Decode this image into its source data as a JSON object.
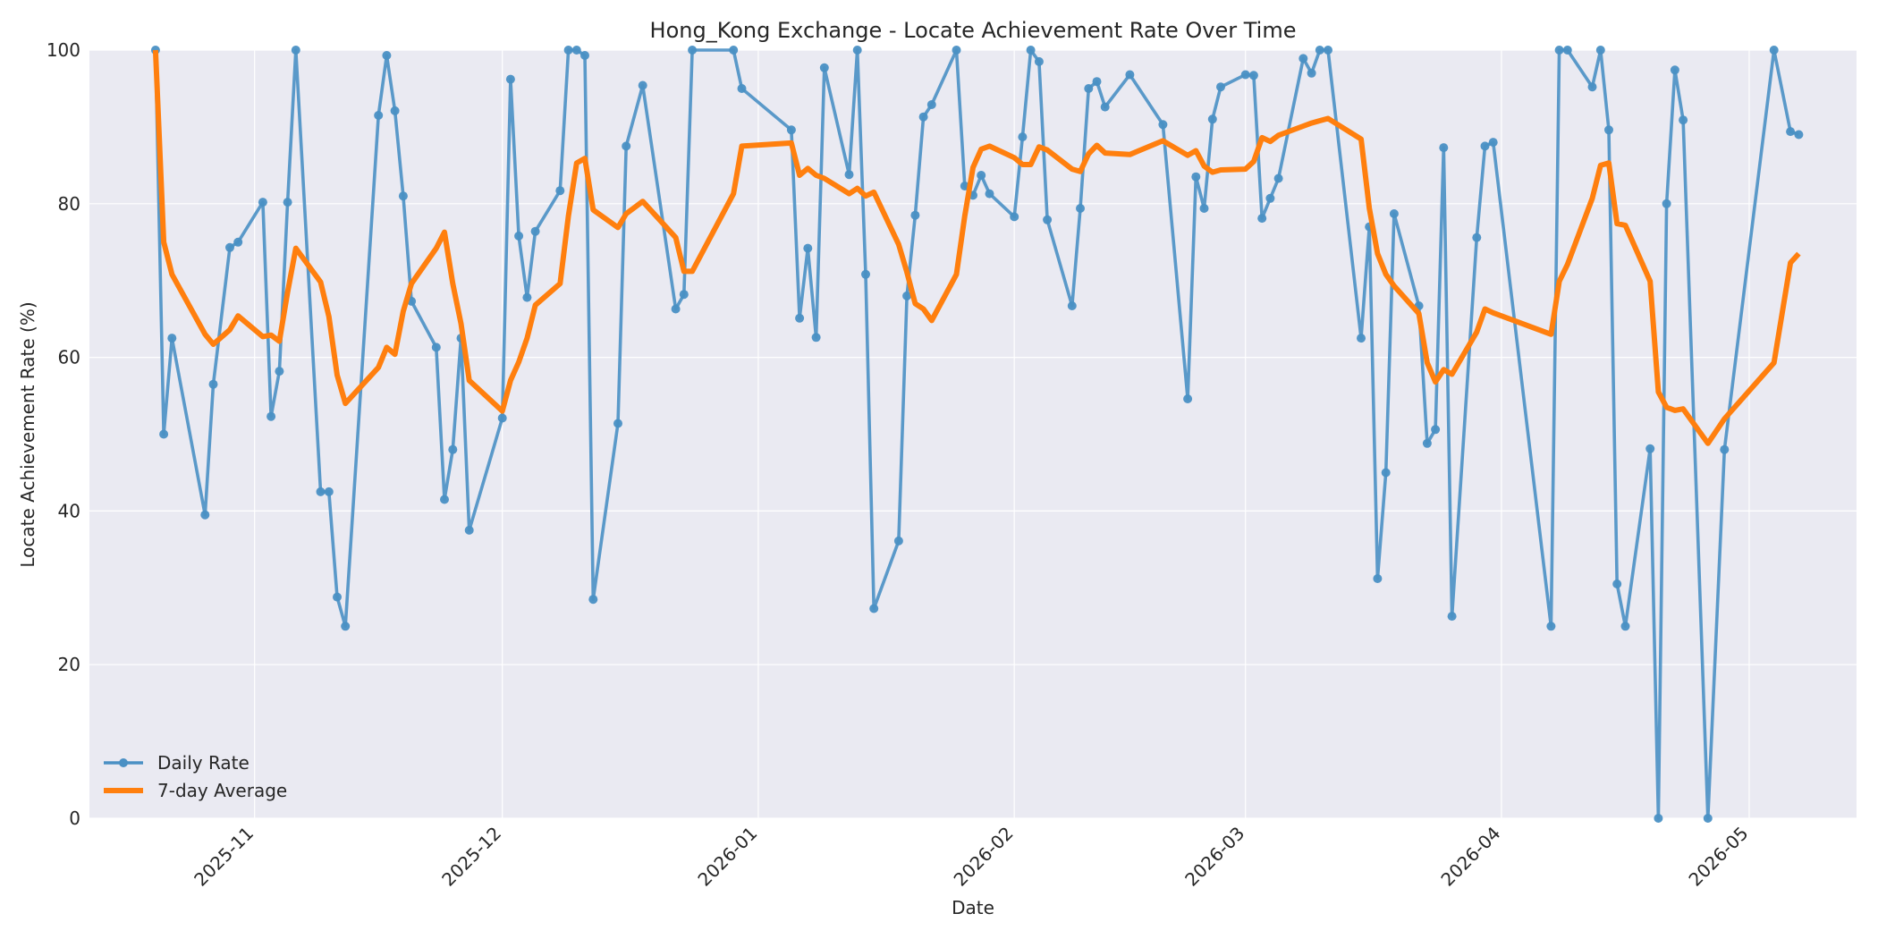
{
  "chart_data": {
    "type": "line",
    "title": "Hong_Kong Exchange - Locate Achievement Rate Over Time",
    "xlabel": "Date",
    "ylabel": "Locate Achievement Rate (%)",
    "xlim": [
      "2025-10-12",
      "2026-05-14"
    ],
    "ylim": [
      0,
      100
    ],
    "x_ticks": [
      "2025-11",
      "2025-12",
      "2026-01",
      "2026-02",
      "2026-03",
      "2026-04",
      "2026-05"
    ],
    "y_ticks": [
      0,
      20,
      40,
      60,
      80,
      100
    ],
    "grid": true,
    "legend_position": "bottom-left",
    "colors": {
      "daily": "#4a90c4",
      "average": "#ff7f0e",
      "plot_bg": "#eaeaf2",
      "grid": "#ffffff"
    },
    "series": [
      {
        "name": "Daily Rate",
        "marker": "circle",
        "x": [
          "2025-10-20",
          "2025-10-21",
          "2025-10-22",
          "2025-10-26",
          "2025-10-27",
          "2025-10-29",
          "2025-10-30",
          "2025-11-02",
          "2025-11-03",
          "2025-11-04",
          "2025-11-05",
          "2025-11-06",
          "2025-11-09",
          "2025-11-10",
          "2025-11-11",
          "2025-11-12",
          "2025-11-16",
          "2025-11-17",
          "2025-11-18",
          "2025-11-19",
          "2025-11-20",
          "2025-11-23",
          "2025-11-24",
          "2025-11-25",
          "2025-11-26",
          "2025-11-27",
          "2025-12-01",
          "2025-12-02",
          "2025-12-03",
          "2025-12-04",
          "2025-12-05",
          "2025-12-08",
          "2025-12-09",
          "2025-12-10",
          "2025-12-11",
          "2025-12-12",
          "2025-12-15",
          "2025-12-16",
          "2025-12-18",
          "2025-12-22",
          "2025-12-23",
          "2025-12-24",
          "2025-12-29",
          "2025-12-30",
          "2026-01-05",
          "2026-01-06",
          "2026-01-07",
          "2026-01-08",
          "2026-01-09",
          "2026-01-12",
          "2026-01-13",
          "2026-01-14",
          "2026-01-15",
          "2026-01-18",
          "2026-01-19",
          "2026-01-20",
          "2026-01-21",
          "2026-01-22",
          "2026-01-25",
          "2026-01-26",
          "2026-01-27",
          "2026-01-28",
          "2026-01-29",
          "2026-02-01",
          "2026-02-02",
          "2026-02-03",
          "2026-02-04",
          "2026-02-05",
          "2026-02-08",
          "2026-02-09",
          "2026-02-10",
          "2026-02-11",
          "2026-02-12",
          "2026-02-15",
          "2026-02-19",
          "2026-02-22",
          "2026-02-23",
          "2026-02-24",
          "2026-02-25",
          "2026-02-26",
          "2026-03-01",
          "2026-03-02",
          "2026-03-03",
          "2026-03-04",
          "2026-03-05",
          "2026-03-08",
          "2026-03-09",
          "2026-03-10",
          "2026-03-11",
          "2026-03-15",
          "2026-03-16",
          "2026-03-17",
          "2026-03-18",
          "2026-03-19",
          "2026-03-22",
          "2026-03-23",
          "2026-03-24",
          "2026-03-25",
          "2026-03-26",
          "2026-03-29",
          "2026-03-30",
          "2026-03-31",
          "2026-04-07",
          "2026-04-08",
          "2026-04-09",
          "2026-04-12",
          "2026-04-13",
          "2026-04-14",
          "2026-04-15",
          "2026-04-16",
          "2026-04-19",
          "2026-04-20",
          "2026-04-21",
          "2026-04-22",
          "2026-04-23",
          "2026-04-26",
          "2026-04-28",
          "2026-05-04",
          "2026-05-06",
          "2026-05-07"
        ],
        "values": [
          100,
          50,
          62.5,
          39.5,
          56.5,
          74.3,
          75,
          80.2,
          52.3,
          58.2,
          80.2,
          100,
          42.5,
          42.5,
          28.8,
          25,
          91.5,
          99.3,
          92.1,
          81,
          67.3,
          61.3,
          41.5,
          48,
          62.5,
          37.5,
          52.1,
          96.2,
          75.8,
          67.8,
          76.4,
          81.7,
          100,
          100,
          99.3,
          28.5,
          51.4,
          87.5,
          95.4,
          66.3,
          68.2,
          100,
          100,
          95,
          89.6,
          65.1,
          74.2,
          62.6,
          97.7,
          83.8,
          100,
          70.8,
          27.3,
          36.1,
          68,
          78.5,
          91.3,
          92.9,
          100,
          82.3,
          81.1,
          83.7,
          81.3,
          78.3,
          88.7,
          100,
          98.5,
          77.9,
          66.7,
          79.4,
          95,
          95.9,
          92.6,
          96.8,
          90.3,
          54.6,
          83.5,
          79.4,
          91,
          95.2,
          96.8,
          96.7,
          78.1,
          80.7,
          83.3,
          98.9,
          97,
          100,
          100,
          62.5,
          77,
          31.2,
          45,
          78.7,
          66.7,
          48.8,
          50.6,
          87.3,
          26.3,
          75.6,
          87.5,
          88,
          25,
          100,
          100,
          95.2,
          100,
          89.6,
          30.5,
          25,
          48.1,
          0,
          80,
          97.4,
          90.9,
          0,
          48,
          100,
          89.4,
          89
        ]
      },
      {
        "name": "7-day Average",
        "marker": "none",
        "x": [
          "2025-10-20",
          "2025-10-21",
          "2025-10-22",
          "2025-10-26",
          "2025-10-27",
          "2025-10-29",
          "2025-10-30",
          "2025-11-02",
          "2025-11-03",
          "2025-11-04",
          "2025-11-05",
          "2025-11-06",
          "2025-11-09",
          "2025-11-10",
          "2025-11-11",
          "2025-11-12",
          "2025-11-16",
          "2025-11-17",
          "2025-11-18",
          "2025-11-19",
          "2025-11-20",
          "2025-11-23",
          "2025-11-24",
          "2025-11-25",
          "2025-11-26",
          "2025-11-27",
          "2025-12-01",
          "2025-12-02",
          "2025-12-03",
          "2025-12-04",
          "2025-12-05",
          "2025-12-08",
          "2025-12-09",
          "2025-12-10",
          "2025-12-11",
          "2025-12-12",
          "2025-12-15",
          "2025-12-16",
          "2025-12-18",
          "2025-12-22",
          "2025-12-23",
          "2025-12-24",
          "2025-12-29",
          "2025-12-30",
          "2026-01-05",
          "2026-01-06",
          "2026-01-07",
          "2026-01-08",
          "2026-01-09",
          "2026-01-12",
          "2026-01-13",
          "2026-01-14",
          "2026-01-15",
          "2026-01-18",
          "2026-01-19",
          "2026-01-20",
          "2026-01-21",
          "2026-01-22",
          "2026-01-25",
          "2026-01-26",
          "2026-01-27",
          "2026-01-28",
          "2026-01-29",
          "2026-02-01",
          "2026-02-02",
          "2026-02-03",
          "2026-02-04",
          "2026-02-05",
          "2026-02-08",
          "2026-02-09",
          "2026-02-10",
          "2026-02-11",
          "2026-02-12",
          "2026-02-15",
          "2026-02-19",
          "2026-02-22",
          "2026-02-23",
          "2026-02-24",
          "2026-02-25",
          "2026-02-26",
          "2026-03-01",
          "2026-03-02",
          "2026-03-03",
          "2026-03-04",
          "2026-03-05",
          "2026-03-08",
          "2026-03-09",
          "2026-03-10",
          "2026-03-11",
          "2026-03-15",
          "2026-03-16",
          "2026-03-17",
          "2026-03-18",
          "2026-03-19",
          "2026-03-22",
          "2026-03-23",
          "2026-03-24",
          "2026-03-25",
          "2026-03-26",
          "2026-03-29",
          "2026-03-30",
          "2026-03-31",
          "2026-04-07",
          "2026-04-08",
          "2026-04-09",
          "2026-04-12",
          "2026-04-13",
          "2026-04-14",
          "2026-04-15",
          "2026-04-16",
          "2026-04-19",
          "2026-04-20",
          "2026-04-21",
          "2026-04-22",
          "2026-04-23",
          "2026-04-26",
          "2026-04-28",
          "2026-05-04",
          "2026-05-06",
          "2026-05-07"
        ],
        "values": [
          100,
          75,
          70.8,
          63,
          61.7,
          63.6,
          65.4,
          62.7,
          62.9,
          62.1,
          68.5,
          74.2,
          69.8,
          65.3,
          57.7,
          54,
          58.7,
          61.3,
          60.4,
          66,
          69.6,
          74.2,
          76.3,
          69.6,
          64.4,
          57,
          53,
          57,
          59.4,
          62.5,
          66.8,
          69.6,
          78.4,
          85.3,
          85.9,
          79.2,
          76.9,
          78.7,
          80.3,
          75.6,
          71.2,
          71.2,
          81.3,
          87.5,
          87.9,
          83.7,
          84.6,
          83.7,
          83.3,
          81.3,
          82,
          81,
          81.5,
          74.7,
          71.1,
          67,
          66.3,
          64.8,
          70.8,
          78.4,
          84.7,
          87.1,
          87.5,
          86,
          85.1,
          85.1,
          87.4,
          87,
          84.5,
          84.2,
          86.5,
          87.6,
          86.6,
          86.4,
          88.2,
          86.3,
          86.9,
          84.9,
          84.1,
          84.4,
          84.5,
          85.5,
          88.6,
          88.1,
          88.9,
          90.1,
          90.5,
          90.8,
          91.1,
          88.4,
          79.4,
          73.5,
          70.8,
          69.3,
          65.7,
          59.3,
          56.8,
          58.4,
          57.8,
          63.3,
          66.3,
          65.8,
          63,
          69.9,
          72.1,
          80.7,
          85,
          85.3,
          77.4,
          77.2,
          69.9,
          55.5,
          53.5,
          53.1,
          53.3,
          48.8,
          52,
          59.3,
          72.3,
          73.5
        ]
      }
    ]
  }
}
